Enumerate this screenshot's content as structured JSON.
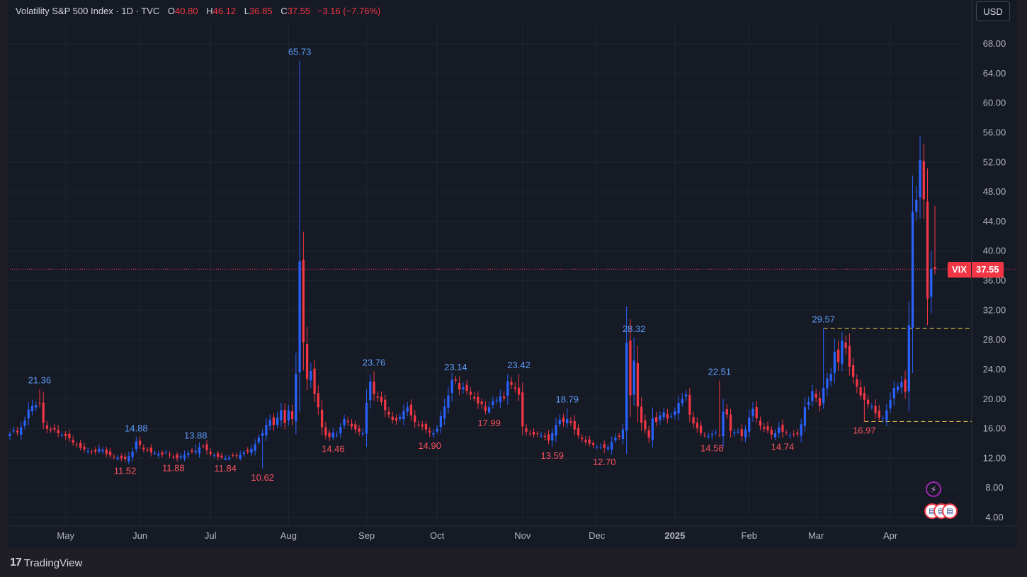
{
  "legend": {
    "title": "Volatility S&P 500 Index · 1D · TVC",
    "o_label": "O",
    "o_value": "40.80",
    "h_label": "H",
    "h_value": "46.12",
    "l_label": "L",
    "l_value": "36.85",
    "c_label": "C",
    "c_value": "37.55",
    "change": "−3.16 (−7.76%)"
  },
  "currency_button": "USD",
  "price_badge": {
    "symbol": "VIX",
    "price": "37.55"
  },
  "footer": {
    "logo": "17",
    "brand": "TradingView"
  },
  "colors": {
    "up": "#2962ff",
    "down": "#f23645",
    "background": "#161a25",
    "grid": "#1f2430",
    "text": "#b2b5be"
  },
  "icons": {
    "event_flash": "lightning-icon",
    "event_flag": "us-flag-icon"
  },
  "chart_data": {
    "type": "candlestick",
    "title": "Volatility S&P 500 Index · 1D · TVC",
    "y_ticks": [
      "68.00",
      "64.00",
      "60.00",
      "56.00",
      "52.00",
      "48.00",
      "44.00",
      "40.00",
      "36.00",
      "32.00",
      "28.00",
      "24.00",
      "20.00",
      "16.00",
      "12.00",
      "8.00",
      "4.00"
    ],
    "ylim": [
      4,
      68
    ],
    "x_ticks": [
      {
        "label": "May",
        "bar": 15
      },
      {
        "label": "Jun",
        "bar": 35
      },
      {
        "label": "Jul",
        "bar": 54
      },
      {
        "label": "Aug",
        "bar": 75
      },
      {
        "label": "Sep",
        "bar": 96
      },
      {
        "label": "Oct",
        "bar": 115
      },
      {
        "label": "Nov",
        "bar": 138
      },
      {
        "label": "Dec",
        "bar": 158
      },
      {
        "label": "2025",
        "bar": 179
      },
      {
        "label": "Feb",
        "bar": 199
      },
      {
        "label": "Mar",
        "bar": 217
      },
      {
        "label": "Apr",
        "bar": 237
      }
    ],
    "annotations": [
      {
        "text": "21.36",
        "bar": 8,
        "value": 21.36,
        "kind": "high"
      },
      {
        "text": "11.52",
        "bar": 31,
        "value": 11.52,
        "kind": "low"
      },
      {
        "text": "14.88",
        "bar": 34,
        "value": 14.88,
        "kind": "high"
      },
      {
        "text": "11.88",
        "bar": 44,
        "value": 11.88,
        "kind": "low"
      },
      {
        "text": "13.88",
        "bar": 50,
        "value": 13.88,
        "kind": "high"
      },
      {
        "text": "11.84",
        "bar": 58,
        "value": 11.84,
        "kind": "low"
      },
      {
        "text": "10.62",
        "bar": 68,
        "value": 10.62,
        "kind": "low"
      },
      {
        "text": "65.73",
        "bar": 78,
        "value": 65.73,
        "kind": "high"
      },
      {
        "text": "14.46",
        "bar": 87,
        "value": 14.46,
        "kind": "low"
      },
      {
        "text": "23.76",
        "bar": 98,
        "value": 23.76,
        "kind": "high"
      },
      {
        "text": "14.90",
        "bar": 113,
        "value": 14.9,
        "kind": "low"
      },
      {
        "text": "23.14",
        "bar": 120,
        "value": 23.14,
        "kind": "high"
      },
      {
        "text": "17.99",
        "bar": 129,
        "value": 17.99,
        "kind": "low"
      },
      {
        "text": "23.42",
        "bar": 137,
        "value": 23.42,
        "kind": "high"
      },
      {
        "text": "13.59",
        "bar": 146,
        "value": 13.59,
        "kind": "low"
      },
      {
        "text": "18.79",
        "bar": 150,
        "value": 18.79,
        "kind": "high"
      },
      {
        "text": "12.70",
        "bar": 160,
        "value": 12.7,
        "kind": "low"
      },
      {
        "text": "28.32",
        "bar": 168,
        "value": 28.32,
        "kind": "high"
      },
      {
        "text": "22.51",
        "bar": 191,
        "value": 22.51,
        "kind": "high"
      },
      {
        "text": "14.58",
        "bar": 189,
        "value": 14.58,
        "kind": "low"
      },
      {
        "text": "14.74",
        "bar": 208,
        "value": 14.74,
        "kind": "low"
      },
      {
        "text": "29.57",
        "bar": 219,
        "value": 29.57,
        "kind": "high"
      },
      {
        "text": "16.97",
        "bar": 230,
        "value": 16.97,
        "kind": "low"
      }
    ],
    "reference_lines": [
      {
        "value": 29.57,
        "from_bar": 219,
        "color": "#f5d547",
        "style": "dashed"
      },
      {
        "value": 16.97,
        "from_bar": 230,
        "color": "#f5d547",
        "style": "dashed"
      },
      {
        "value": 37.55,
        "from_bar": 0,
        "color": "#f23645",
        "style": "dotted"
      }
    ],
    "closes": [
      15.3,
      15.8,
      15.5,
      16.2,
      17.1,
      18.6,
      19.1,
      19.2,
      19.4,
      16.8,
      16.0,
      15.8,
      15.9,
      15.4,
      15.2,
      15.0,
      14.7,
      14.1,
      13.8,
      13.4,
      13.2,
      13.0,
      12.8,
      12.9,
      13.3,
      13.1,
      12.6,
      12.4,
      12.2,
      12.1,
      12.0,
      11.9,
      12.3,
      12.9,
      14.3,
      13.8,
      13.2,
      13.1,
      12.8,
      12.7,
      12.6,
      12.5,
      12.8,
      12.4,
      12.2,
      12.0,
      12.3,
      12.5,
      12.7,
      12.9,
      13.0,
      13.5,
      13.6,
      13.1,
      12.6,
      12.4,
      12.2,
      12.1,
      12.0,
      12.1,
      12.4,
      12.3,
      12.5,
      12.8,
      12.9,
      13.3,
      13.9,
      14.8,
      15.4,
      16.5,
      17.2,
      16.5,
      17.5,
      18.5,
      16.8,
      18.5,
      17.3,
      23.4,
      38.6,
      27.7,
      22.7,
      23.8,
      20.7,
      18.9,
      16.2,
      15.1,
      14.9,
      15.5,
      15.2,
      16.2,
      17.3,
      16.9,
      16.3,
      15.9,
      15.6,
      15.4,
      19.5,
      22.4,
      20.7,
      20.2,
      19.6,
      18.5,
      17.9,
      17.2,
      17.1,
      17.6,
      18.4,
      18.9,
      17.8,
      16.9,
      16.5,
      16.3,
      15.9,
      15.5,
      15.4,
      16.0,
      17.7,
      19.0,
      20.5,
      22.6,
      22.5,
      21.3,
      21.6,
      21.1,
      20.6,
      20.1,
      19.4,
      19.3,
      18.4,
      18.9,
      19.7,
      19.9,
      20.4,
      20.1,
      22.4,
      21.9,
      21.4,
      20.6,
      16.3,
      15.6,
      15.3,
      15.2,
      15.3,
      15.1,
      14.9,
      14.4,
      15.4,
      16.5,
      17.2,
      16.9,
      17.3,
      16.8,
      15.9,
      15.1,
      14.6,
      14.2,
      14.0,
      13.8,
      13.5,
      13.6,
      13.4,
      13.5,
      14.2,
      14.8,
      14.9,
      15.9,
      27.6,
      20.5,
      25.2,
      19.0,
      16.8,
      15.9,
      14.8,
      17.4,
      16.9,
      17.8,
      18.2,
      17.4,
      17.7,
      18.4,
      19.5,
      20.0,
      20.6,
      17.9,
      16.7,
      16.1,
      15.4,
      15.2,
      15.0,
      15.3,
      15.5,
      15.1,
      18.3,
      17.9,
      15.7,
      15.5,
      15.6,
      15.0,
      15.9,
      17.5,
      18.7,
      17.4,
      16.4,
      16.0,
      15.8,
      15.2,
      15.4,
      16.2,
      15.6,
      15.4,
      15.1,
      15.2,
      15.3,
      16.6,
      18.9,
      19.6,
      21.1,
      20.2,
      19.1,
      21.5,
      22.8,
      23.4,
      26.4,
      25.0,
      27.9,
      26.9,
      24.4,
      23.0,
      21.7,
      20.5,
      19.9,
      19.3,
      19.0,
      18.1,
      17.5,
      17.4,
      18.5,
      19.9,
      21.5,
      21.7,
      22.3,
      21.0,
      30.0,
      45.3,
      46.9,
      52.3,
      47.0,
      33.6,
      37.6,
      37.55
    ]
  }
}
